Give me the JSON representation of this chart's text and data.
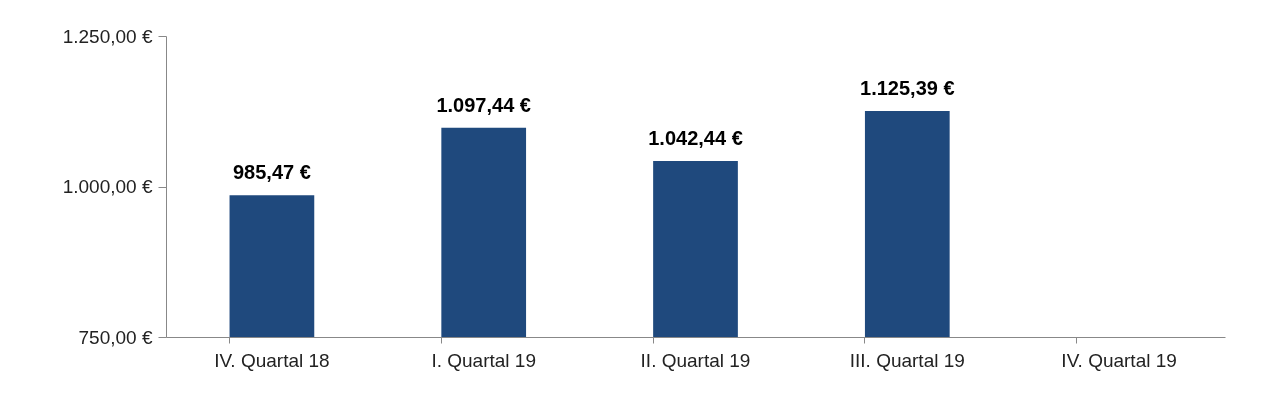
{
  "chart_data": {
    "type": "bar",
    "categories": [
      "IV. Quartal 18",
      "I. Quartal 19",
      "II. Quartal 19",
      "III. Quartal 19",
      "IV. Quartal 19"
    ],
    "values": [
      985.47,
      1097.44,
      1042.44,
      1125.39,
      null
    ],
    "value_labels": [
      "985,47 €",
      "1.097,44 €",
      "1.042,44 €",
      "1.125,39 €",
      null
    ],
    "color": "#1f497d",
    "ylim": [
      750,
      1250
    ],
    "yticks": [
      {
        "value": 750,
        "label": "750,00 €"
      },
      {
        "value": 1000,
        "label": "1.000,00 €"
      },
      {
        "value": 1250,
        "label": "1.250,00 €"
      }
    ],
    "grid": false
  }
}
